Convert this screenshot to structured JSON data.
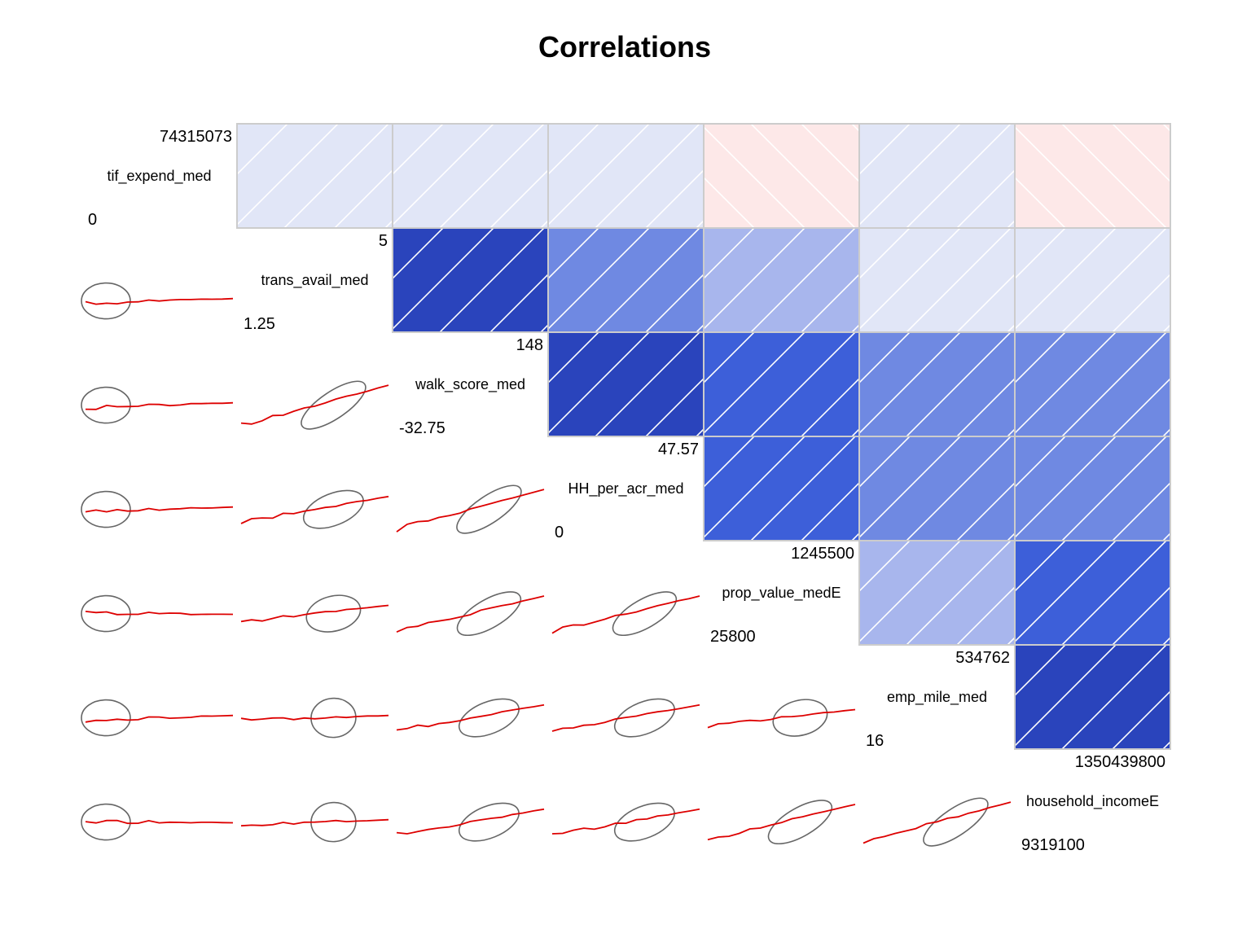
{
  "chart_data": {
    "type": "heatmap",
    "title": "Correlations",
    "variables": [
      {
        "name": "tif_expend_med",
        "max": "74315073",
        "min": "0"
      },
      {
        "name": "trans_avail_med",
        "max": "5",
        "min": "1.25"
      },
      {
        "name": "walk_score_med",
        "max": "148",
        "min": "-32.75"
      },
      {
        "name": "HH_per_acr_med",
        "max": "47.57",
        "min": "0"
      },
      {
        "name": "prop_value_medE",
        "max": "1245500",
        "min": "25800"
      },
      {
        "name": "emp_mile_med",
        "max": "534762",
        "min": "16"
      },
      {
        "name": "household_incomeE",
        "max": "1350439800",
        "min": "9319100"
      }
    ],
    "correlations": [
      [
        1.0,
        0.1,
        0.1,
        0.1,
        -0.1,
        0.1,
        -0.1
      ],
      [
        0.1,
        1.0,
        0.85,
        0.55,
        0.35,
        0.1,
        0.1
      ],
      [
        0.1,
        0.85,
        1.0,
        0.85,
        0.75,
        0.55,
        0.55
      ],
      [
        0.1,
        0.55,
        0.85,
        1.0,
        0.75,
        0.55,
        0.55
      ],
      [
        -0.1,
        0.35,
        0.75,
        0.75,
        1.0,
        0.35,
        0.75
      ],
      [
        0.1,
        0.1,
        0.55,
        0.55,
        0.35,
        1.0,
        0.85
      ],
      [
        -0.1,
        0.1,
        0.55,
        0.55,
        0.75,
        0.85,
        1.0
      ]
    ],
    "colors": {
      "neg_weak": "#fde8e8",
      "pos_weak": "#e1e6f7",
      "pos_light": "#a8b6ed",
      "pos_medium": "#6f89e2",
      "pos_strong": "#3d5fd9",
      "pos_very_strong": "#2a44bc",
      "smooth_line": "#dd0000",
      "ellipse": "#666666",
      "grid": "#cccccc"
    },
    "upper_panel": "shade",
    "lower_panel": "pie-ellipse-smooth"
  }
}
